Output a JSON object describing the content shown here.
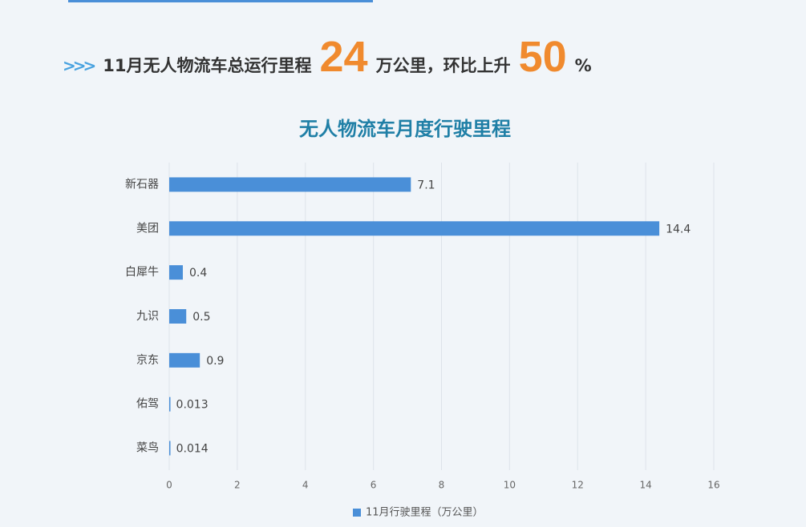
{
  "headline": {
    "prefix": "11月无人物流车总运行里程",
    "figure_1": "24",
    "middle": "万公里，环比上升",
    "figure_2": "50",
    "suffix": "%"
  },
  "chart_data": {
    "type": "bar",
    "orientation": "horizontal",
    "title": "无人物流车月度行驶里程",
    "categories": [
      "新石器",
      "美团",
      "白犀牛",
      "九识",
      "京东",
      "佑驾",
      "菜鸟"
    ],
    "series": [
      {
        "name": "11月行驶里程（万公里）",
        "color": "#4a8fd8",
        "values": [
          7.1,
          14.4,
          0.4,
          0.5,
          0.9,
          0.013,
          0.014
        ]
      }
    ],
    "xlim": [
      0,
      16
    ],
    "xticks": [
      0,
      2,
      4,
      6,
      8,
      10,
      12,
      14,
      16
    ],
    "grid": true,
    "legend": "bottom"
  }
}
